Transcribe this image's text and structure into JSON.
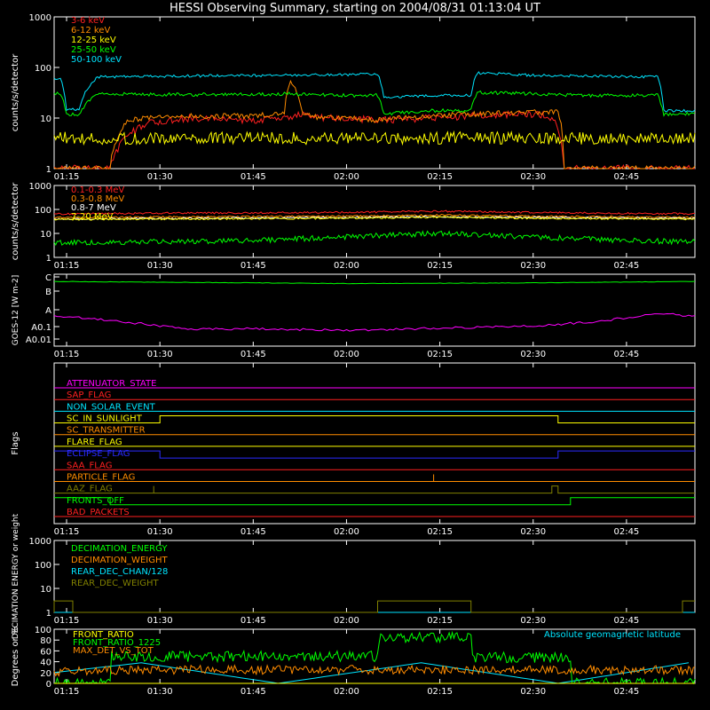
{
  "title": "HESSI Observing Summary, starting on 2004/08/31 01:13:04 UT",
  "time_ticks": [
    "01:15",
    "01:30",
    "01:45",
    "02:00",
    "02:15",
    "02:30",
    "02:45"
  ],
  "chart_data": [
    {
      "type": "line",
      "ylabel": "counts/s/detector",
      "yscale": "log",
      "ylim": [
        1,
        1000
      ],
      "y_tick_labels": [
        "1",
        "10",
        "100",
        "1000"
      ],
      "series": [
        {
          "name": "3-6 keV",
          "color": "#ff2020",
          "x": [
            "01:13",
            "01:17",
            "01:17",
            "01:22",
            "01:28",
            "01:35",
            "01:45",
            "01:50",
            "01:53",
            "01:56",
            "02:00",
            "02:05",
            "02:13",
            "02:20",
            "02:30",
            "02:33",
            "02:35",
            "02:40",
            "02:52",
            "02:56"
          ],
          "values": [
            1,
            1,
            1,
            1,
            8,
            10,
            9,
            10,
            12,
            10,
            10,
            9,
            10,
            11,
            12,
            10,
            1,
            1,
            1,
            1
          ]
        },
        {
          "name": "6-12 keV",
          "color": "#ff8c00",
          "x": [
            "01:13",
            "01:22",
            "01:25",
            "01:28",
            "01:35",
            "01:45",
            "01:50",
            "01:51",
            "01:53",
            "01:56",
            "02:00",
            "02:05",
            "02:13",
            "02:20",
            "02:30",
            "02:34",
            "02:35",
            "02:56"
          ],
          "values": [
            1,
            1,
            9,
            10,
            11,
            11,
            12,
            50,
            12,
            10,
            10,
            9,
            11,
            12,
            13,
            13,
            1,
            1
          ]
        },
        {
          "name": "12-25 keV",
          "color": "#ffff00",
          "x": [
            "01:13",
            "01:17",
            "01:20",
            "01:30",
            "01:45",
            "02:00",
            "02:15",
            "02:30",
            "02:45",
            "02:56"
          ],
          "values": [
            4,
            4,
            4,
            4,
            4,
            4,
            4,
            4,
            4,
            4
          ]
        },
        {
          "name": "25-50 keV",
          "color": "#00ff00",
          "x": [
            "01:13",
            "01:14",
            "01:15",
            "01:17",
            "01:20",
            "01:35",
            "01:50",
            "02:00",
            "02:05",
            "02:06",
            "02:13",
            "02:20",
            "02:21",
            "02:30",
            "02:40",
            "02:50",
            "02:51",
            "02:56"
          ],
          "values": [
            30,
            30,
            12,
            12,
            30,
            29,
            30,
            28,
            28,
            12,
            14,
            14,
            32,
            30,
            28,
            28,
            12,
            12
          ]
        },
        {
          "name": "50-100 keV",
          "color": "#00e5ff",
          "x": [
            "01:13",
            "01:14",
            "01:15",
            "01:17",
            "01:20",
            "01:35",
            "01:50",
            "02:00",
            "02:05",
            "02:06",
            "02:13",
            "02:20",
            "02:21",
            "02:30",
            "02:40",
            "02:50",
            "02:51",
            "02:56"
          ],
          "values": [
            60,
            60,
            15,
            15,
            65,
            68,
            70,
            72,
            75,
            25,
            28,
            28,
            78,
            70,
            67,
            65,
            14,
            14
          ]
        }
      ]
    },
    {
      "type": "line",
      "ylabel": "counts/s/detector",
      "yscale": "log",
      "ylim": [
        1,
        1000
      ],
      "y_tick_labels": [
        "1",
        "10",
        "100",
        "1000"
      ],
      "series": [
        {
          "name": "0.1-0.3 MeV",
          "color": "#ff2020",
          "x": [
            "01:13",
            "01:30",
            "02:00",
            "02:15",
            "02:30",
            "02:56"
          ],
          "values": [
            65,
            70,
            75,
            85,
            75,
            65
          ]
        },
        {
          "name": "0.3-0.8 MeV",
          "color": "#ff8c00",
          "x": [
            "01:13",
            "01:30",
            "02:00",
            "02:15",
            "02:30",
            "02:56"
          ],
          "values": [
            45,
            48,
            52,
            58,
            52,
            47
          ]
        },
        {
          "name": "0.8-7 MeV",
          "color": "#ffffff",
          "x": [
            "01:13",
            "01:30",
            "02:00",
            "02:15",
            "02:30",
            "02:56"
          ],
          "values": [
            40,
            42,
            46,
            50,
            46,
            42
          ]
        },
        {
          "name": "7-20 MeV",
          "color": "#ffff00",
          "x": [
            "01:13",
            "01:30",
            "02:00",
            "02:15",
            "02:30",
            "02:56"
          ],
          "values": [
            38,
            40,
            43,
            48,
            43,
            40
          ]
        },
        {
          "name": "",
          "color": "#00ff00",
          "x": [
            "01:13",
            "01:30",
            "01:45",
            "02:00",
            "02:15",
            "02:30",
            "02:45",
            "02:56"
          ],
          "values": [
            4,
            4.5,
            5,
            7,
            10,
            7,
            5,
            4.5
          ]
        }
      ]
    },
    {
      "type": "line",
      "ylabel": "GOES-12 [W m-2]",
      "y_tick_labels": [
        "A0.01",
        "A0.1",
        "A",
        "B",
        "C"
      ],
      "series": [
        {
          "name": "",
          "color": "#00ff00",
          "x": [
            "01:13",
            "01:45",
            "02:00",
            "02:30",
            "02:56"
          ],
          "values": [
            0.9,
            0.88,
            0.87,
            0.88,
            0.9
          ]
        },
        {
          "name": "",
          "color": "#ff00ff",
          "x": [
            "01:13",
            "01:20",
            "01:25",
            "01:35",
            "01:45",
            "02:00",
            "02:15",
            "02:30",
            "02:40",
            "02:50",
            "02:56"
          ],
          "values": [
            0.42,
            0.38,
            0.33,
            0.24,
            0.24,
            0.22,
            0.25,
            0.28,
            0.34,
            0.45,
            0.42
          ]
        }
      ]
    },
    {
      "type": "line",
      "ylabel": "Flags",
      "series": [
        {
          "name": "ATTENUATOR_STATE",
          "color": "#ff00ff",
          "x": [
            "01:13",
            "02:56"
          ],
          "values": [
            0,
            0
          ]
        },
        {
          "name": "SAP_FLAG",
          "color": "#ff2020",
          "x": [
            "01:13",
            "02:56"
          ],
          "values": [
            0,
            0
          ]
        },
        {
          "name": "NON_SOLAR_EVENT",
          "color": "#00e5ff",
          "x": [
            "01:13",
            "02:56"
          ],
          "values": [
            0,
            0
          ]
        },
        {
          "name": "SC_IN_SUNLIGHT",
          "color": "#ffff00",
          "x": [
            "01:13",
            "01:30",
            "01:30",
            "02:34",
            "02:34",
            "02:56"
          ],
          "values": [
            0,
            0,
            1,
            1,
            0,
            0
          ]
        },
        {
          "name": "SC_TRANSMITTER",
          "color": "#ff8c00",
          "x": [
            "01:13",
            "02:56"
          ],
          "values": [
            0,
            0
          ]
        },
        {
          "name": "FLARE_FLAG",
          "color": "#ffff00",
          "x": [
            "01:13",
            "02:56"
          ],
          "values": [
            0,
            0
          ]
        },
        {
          "name": "ECLIPSE_FLAG",
          "color": "#2a2aff",
          "x": [
            "01:13",
            "01:30",
            "01:30",
            "02:34",
            "02:34",
            "02:56"
          ],
          "values": [
            1,
            1,
            0,
            0,
            1,
            1
          ]
        },
        {
          "name": "SAA_FLAG",
          "color": "#ff2020",
          "x": [
            "01:13",
            "02:56"
          ],
          "values": [
            0,
            0
          ]
        },
        {
          "name": "PARTICLE_FLAG",
          "color": "#ff8c00",
          "x": [
            "01:13",
            "02:14",
            "02:14",
            "02:14",
            "02:14",
            "02:56"
          ],
          "values": [
            0,
            0,
            1,
            1,
            0,
            0
          ]
        },
        {
          "name": "AAZ_FLAG",
          "color": "#808000",
          "x": [
            "01:13",
            "01:29",
            "01:29",
            "01:29",
            "01:29",
            "02:33",
            "02:33",
            "02:34",
            "02:34",
            "02:56"
          ],
          "values": [
            0,
            0,
            1,
            1,
            0,
            0,
            1,
            1,
            0,
            0
          ]
        },
        {
          "name": "FRONTS_OFF",
          "color": "#00ff00",
          "x": [
            "01:13",
            "01:22",
            "01:22",
            "02:36",
            "02:36",
            "02:56"
          ],
          "values": [
            1,
            1,
            0,
            0,
            1,
            1
          ]
        },
        {
          "name": "BAD_PACKETS",
          "color": "#ff2020",
          "x": [
            "01:13",
            "02:56"
          ],
          "values": [
            0,
            0
          ]
        }
      ]
    },
    {
      "type": "line",
      "ylabel": "DECIMATION ENERGY or weight",
      "yscale": "log",
      "ylim": [
        1,
        1000
      ],
      "y_tick_labels": [
        "1",
        "10",
        "100",
        "1000"
      ],
      "series": [
        {
          "name": "DECIMATION_ENERGY",
          "color": "#00ff00",
          "x": [
            "01:13",
            "02:56"
          ],
          "values": [
            1,
            1
          ]
        },
        {
          "name": "DECIMATION_WEIGHT",
          "color": "#ff8c00",
          "x": [
            "01:13",
            "02:56"
          ],
          "values": [
            1,
            1
          ]
        },
        {
          "name": "REAR_DEC_CHAN/128",
          "color": "#00e5ff",
          "x": [
            "01:13",
            "02:56"
          ],
          "values": [
            1,
            1
          ]
        },
        {
          "name": "REAR_DEC_WEIGHT",
          "color": "#808000",
          "x": [
            "01:13",
            "01:13",
            "01:16",
            "01:16",
            "02:05",
            "02:05",
            "02:20",
            "02:20",
            "02:54",
            "02:54",
            "02:56"
          ],
          "values": [
            1,
            3,
            3,
            1,
            1,
            3,
            3,
            1,
            1,
            3,
            3
          ]
        }
      ]
    },
    {
      "type": "line",
      "ylabel": "Degrees or %",
      "ylim": [
        0,
        100
      ],
      "y_tick_labels": [
        "0",
        "20",
        "40",
        "60",
        "80",
        "100"
      ],
      "annotation": "Absolute geomagnetic latitude",
      "series": [
        {
          "name": "FRONT_RATIO",
          "color": "#ffff00",
          "x": [
            "01:13",
            "02:56"
          ],
          "values": [
            0,
            0
          ]
        },
        {
          "name": "FRONT_RATIO_1225",
          "color": "#00ff00",
          "x": [
            "01:13",
            "01:22",
            "01:22",
            "02:05",
            "02:05",
            "02:20",
            "02:20",
            "02:36",
            "02:36",
            "02:56"
          ],
          "values": [
            0,
            0,
            50,
            50,
            85,
            85,
            48,
            48,
            0,
            0
          ]
        },
        {
          "name": "MAX_DET_VS_TOT",
          "color": "#ff8c00",
          "x": [
            "01:13",
            "01:30",
            "01:45",
            "02:00",
            "02:15",
            "02:30",
            "02:45",
            "02:56"
          ],
          "values": [
            22,
            25,
            25,
            25,
            25,
            25,
            25,
            25
          ]
        },
        {
          "name": "Absolute geomagnetic latitude",
          "color": "#00e5ff",
          "x": [
            "01:13",
            "01:27",
            "01:49",
            "02:12",
            "02:34",
            "02:55"
          ],
          "values": [
            20,
            38,
            0,
            38,
            0,
            38
          ]
        }
      ]
    }
  ]
}
